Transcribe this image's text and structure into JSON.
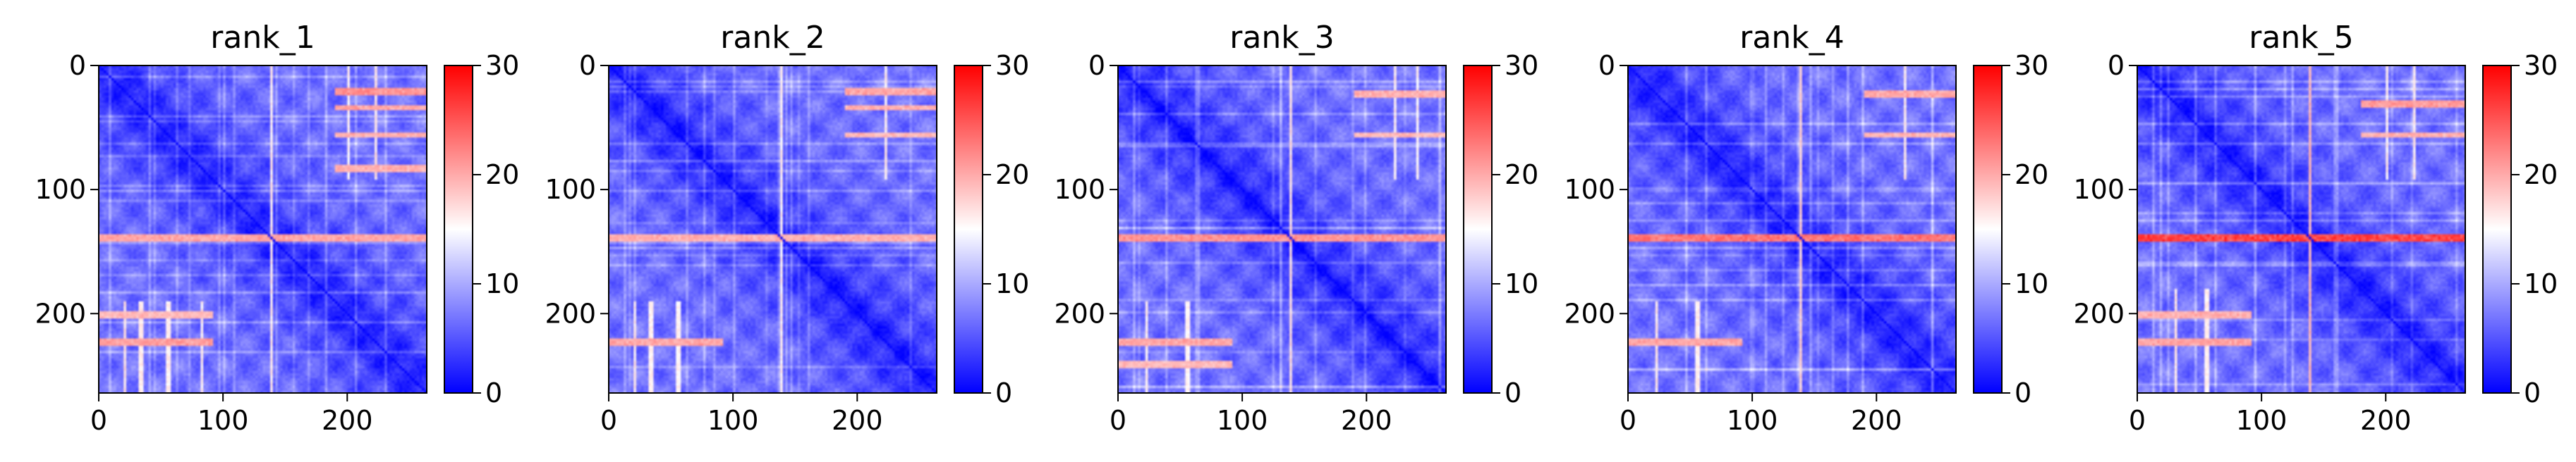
{
  "figure": {
    "panel_count": 5
  },
  "chart_data": [
    {
      "type": "heatmap",
      "title": "rank_1",
      "matrix_size": 264,
      "colormap": "bwr",
      "colors": {
        "low": "#0000ff",
        "mid": "#ffffff",
        "high": "#ff0000"
      },
      "vmin": 0,
      "vmax": 30,
      "x_ticks": [
        0,
        100,
        200
      ],
      "y_ticks": [
        0,
        100,
        200
      ],
      "colorbar_ticks": [
        0,
        10,
        20,
        30
      ],
      "high_rows": [
        {
          "row": 20,
          "strength": 0.55,
          "cols": [
            190,
            264
          ]
        },
        {
          "row": 33,
          "strength": 0.45,
          "cols": [
            190,
            264
          ]
        },
        {
          "row": 55,
          "strength": 0.4,
          "cols": [
            190,
            264
          ]
        },
        {
          "row": 82,
          "strength": 0.4,
          "cols": [
            190,
            264
          ]
        },
        {
          "row": 138,
          "strength": 0.45,
          "cols": [
            0,
            264
          ]
        },
        {
          "row": 200,
          "strength": 0.35,
          "cols": [
            0,
            90
          ]
        },
        {
          "row": 222,
          "strength": 0.5,
          "cols": [
            0,
            90
          ]
        }
      ]
    },
    {
      "type": "heatmap",
      "title": "rank_2",
      "matrix_size": 264,
      "colormap": "bwr",
      "colors": {
        "low": "#0000ff",
        "mid": "#ffffff",
        "high": "#ff0000"
      },
      "vmin": 0,
      "vmax": 30,
      "x_ticks": [
        0,
        100,
        200
      ],
      "y_ticks": [
        0,
        100,
        200
      ],
      "colorbar_ticks": [
        0,
        10,
        20,
        30
      ],
      "high_rows": [
        {
          "row": 20,
          "strength": 0.45,
          "cols": [
            190,
            264
          ]
        },
        {
          "row": 33,
          "strength": 0.4,
          "cols": [
            190,
            264
          ]
        },
        {
          "row": 55,
          "strength": 0.35,
          "cols": [
            190,
            264
          ]
        },
        {
          "row": 138,
          "strength": 0.4,
          "cols": [
            0,
            264
          ]
        },
        {
          "row": 222,
          "strength": 0.45,
          "cols": [
            0,
            90
          ]
        }
      ]
    },
    {
      "type": "heatmap",
      "title": "rank_3",
      "matrix_size": 264,
      "colormap": "bwr",
      "colors": {
        "low": "#0000ff",
        "mid": "#ffffff",
        "high": "#ff0000"
      },
      "vmin": 0,
      "vmax": 30,
      "x_ticks": [
        0,
        100,
        200
      ],
      "y_ticks": [
        0,
        100,
        200
      ],
      "colorbar_ticks": [
        0,
        10,
        20,
        30
      ],
      "high_rows": [
        {
          "row": 22,
          "strength": 0.4,
          "cols": [
            190,
            264
          ]
        },
        {
          "row": 55,
          "strength": 0.35,
          "cols": [
            190,
            264
          ]
        },
        {
          "row": 138,
          "strength": 0.55,
          "cols": [
            0,
            264
          ]
        },
        {
          "row": 222,
          "strength": 0.45,
          "cols": [
            0,
            90
          ]
        },
        {
          "row": 240,
          "strength": 0.35,
          "cols": [
            0,
            90
          ]
        }
      ]
    },
    {
      "type": "heatmap",
      "title": "rank_4",
      "matrix_size": 264,
      "colormap": "bwr",
      "colors": {
        "low": "#0000ff",
        "mid": "#ffffff",
        "high": "#ff0000"
      },
      "vmin": 0,
      "vmax": 30,
      "x_ticks": [
        0,
        100,
        200
      ],
      "y_ticks": [
        0,
        100,
        200
      ],
      "colorbar_ticks": [
        0,
        10,
        20,
        30
      ],
      "high_rows": [
        {
          "row": 22,
          "strength": 0.45,
          "cols": [
            190,
            264
          ]
        },
        {
          "row": 55,
          "strength": 0.4,
          "cols": [
            190,
            264
          ]
        },
        {
          "row": 138,
          "strength": 0.7,
          "cols": [
            0,
            264
          ]
        },
        {
          "row": 222,
          "strength": 0.45,
          "cols": [
            0,
            90
          ]
        }
      ]
    },
    {
      "type": "heatmap",
      "title": "rank_5",
      "matrix_size": 264,
      "colormap": "bwr",
      "colors": {
        "low": "#0000ff",
        "mid": "#ffffff",
        "high": "#ff0000"
      },
      "vmin": 0,
      "vmax": 30,
      "x_ticks": [
        0,
        100,
        200
      ],
      "y_ticks": [
        0,
        100,
        200
      ],
      "colorbar_ticks": [
        0,
        10,
        20,
        30
      ],
      "high_rows": [
        {
          "row": 30,
          "strength": 0.5,
          "cols": [
            180,
            264
          ]
        },
        {
          "row": 55,
          "strength": 0.4,
          "cols": [
            180,
            264
          ]
        },
        {
          "row": 138,
          "strength": 0.95,
          "cols": [
            0,
            264
          ]
        },
        {
          "row": 200,
          "strength": 0.4,
          "cols": [
            0,
            90
          ]
        },
        {
          "row": 222,
          "strength": 0.45,
          "cols": [
            0,
            90
          ]
        }
      ]
    }
  ]
}
